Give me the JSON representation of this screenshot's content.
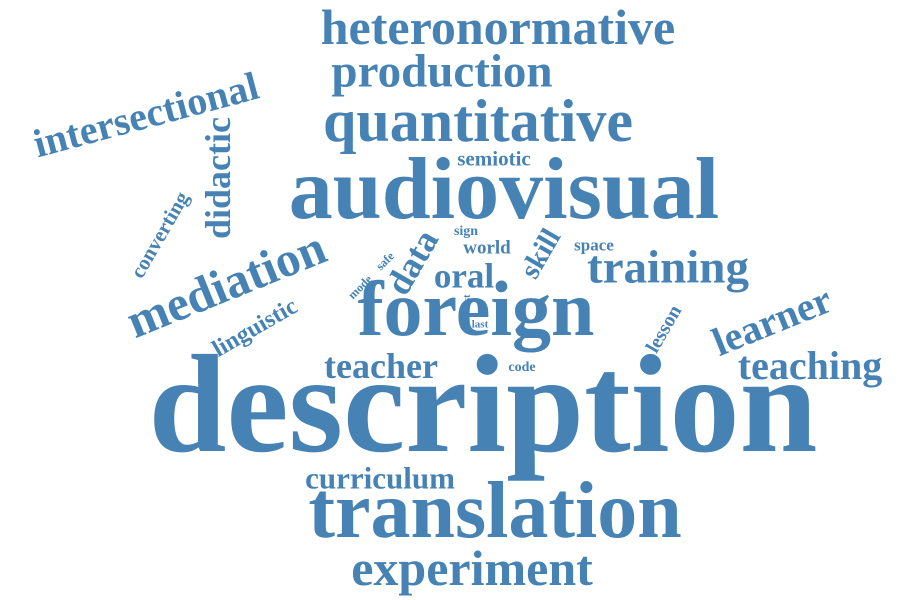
{
  "word_cloud": {
    "color": "#4682b4",
    "words": {
      "heteronormative": "heteronormative",
      "production": "production",
      "intersectional": "intersectional",
      "quantitative": "quantitative",
      "didactic": "didactic",
      "semiotic": "semiotic",
      "audiovisual": "audiovisual",
      "converting": "converting",
      "sign": "sign",
      "space": "space",
      "world": "world",
      "data": "data",
      "skill": "skill",
      "safe": "safe",
      "mediation": "mediation",
      "oral": "oral",
      "training": "training",
      "mode": "mode",
      "test": "test",
      "foreign": "foreign",
      "learner": "learner",
      "linguistic": "linguistic",
      "last": "last",
      "lesson": "lesson",
      "teacher": "teacher",
      "code": "code",
      "teaching": "teaching",
      "description": "description",
      "curriculum": "curriculum",
      "translation": "translation",
      "experiment": "experiment"
    }
  }
}
